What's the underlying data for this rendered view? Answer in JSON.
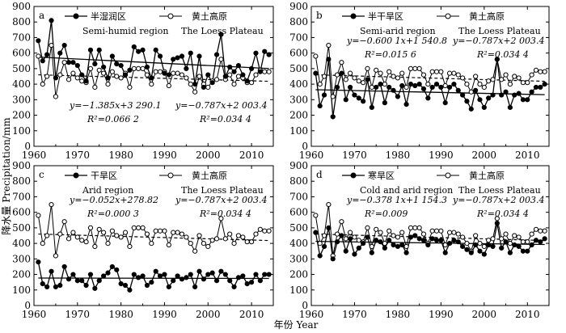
{
  "figure": {
    "y_axis_label": "降水量 Precipitation/mm",
    "x_axis_label": "年份 Year"
  },
  "legend_common": {
    "loess_cn": "黄土高原",
    "loess_en": "The Loess Plateau"
  },
  "chart_data": [
    {
      "type": "line",
      "panel": "a",
      "region_cn": "半湿润区",
      "region_en": "Semi-humid region",
      "eq_region": "y=−1.385x+3 290.1",
      "r2_region": "R²=0.066 2",
      "eq_loess": "y=−0.787x+2 003.4",
      "r2_loess": "R²=0.034 4",
      "xlim": [
        1960,
        2015
      ],
      "ylim": [
        0,
        900
      ],
      "xticks": [
        1960,
        1970,
        1980,
        1990,
        2000,
        2010
      ],
      "yticks": [
        0,
        100,
        200,
        300,
        400,
        500,
        600,
        700,
        800,
        900
      ],
      "trend_region": {
        "slope": -1.385,
        "intercept": 3290.1
      },
      "trend_loess": {
        "slope": -0.787,
        "intercept": 2003.4
      },
      "series": [
        {
          "name": "半湿润区",
          "marker": "filled",
          "x": [
            1961,
            1962,
            1963,
            1964,
            1965,
            1966,
            1967,
            1968,
            1969,
            1970,
            1971,
            1972,
            1973,
            1974,
            1975,
            1976,
            1977,
            1978,
            1979,
            1980,
            1981,
            1982,
            1983,
            1984,
            1985,
            1986,
            1987,
            1988,
            1989,
            1990,
            1991,
            1992,
            1993,
            1994,
            1995,
            1996,
            1997,
            1998,
            1999,
            2000,
            2001,
            2002,
            2003,
            2004,
            2005,
            2006,
            2007,
            2008,
            2009,
            2010,
            2011,
            2012,
            2013,
            2014
          ],
          "values": [
            680,
            550,
            590,
            810,
            440,
            600,
            650,
            540,
            540,
            520,
            460,
            420,
            620,
            530,
            620,
            510,
            440,
            580,
            530,
            520,
            460,
            490,
            640,
            610,
            620,
            510,
            440,
            620,
            580,
            470,
            460,
            560,
            570,
            580,
            500,
            600,
            400,
            580,
            380,
            460,
            410,
            590,
            720,
            450,
            510,
            480,
            520,
            460,
            420,
            500,
            600,
            480,
            610,
            590
          ]
        },
        {
          "name": "黄土高原",
          "marker": "open",
          "x": [
            1961,
            1962,
            1963,
            1964,
            1965,
            1966,
            1967,
            1968,
            1969,
            1970,
            1971,
            1972,
            1973,
            1974,
            1975,
            1976,
            1977,
            1978,
            1979,
            1980,
            1981,
            1982,
            1983,
            1984,
            1985,
            1986,
            1987,
            1988,
            1989,
            1990,
            1991,
            1992,
            1993,
            1994,
            1995,
            1996,
            1997,
            1998,
            1999,
            2000,
            2001,
            2002,
            2003,
            2004,
            2005,
            2006,
            2007,
            2008,
            2009,
            2010,
            2011,
            2012,
            2013,
            2014
          ],
          "values": [
            580,
            400,
            450,
            650,
            320,
            460,
            540,
            430,
            470,
            440,
            420,
            410,
            500,
            380,
            490,
            470,
            400,
            480,
            450,
            440,
            470,
            380,
            500,
            500,
            500,
            460,
            400,
            480,
            480,
            480,
            390,
            470,
            470,
            460,
            440,
            400,
            350,
            450,
            400,
            380,
            420,
            430,
            560,
            430,
            460,
            400,
            450,
            440,
            410,
            410,
            460,
            490,
            480,
            480
          ]
        }
      ]
    },
    {
      "type": "line",
      "panel": "b",
      "region_cn": "半干旱区",
      "region_en": "Semi-arid region",
      "eq_region": "y=−0.600 1x+1 540.8",
      "r2_region": "R²=0.015 6",
      "eq_loess": "y=−0.787x+2 003.4",
      "r2_loess": "R²=0.034 4",
      "xlim": [
        1960,
        2015
      ],
      "ylim": [
        0,
        900
      ],
      "xticks": [
        1960,
        1970,
        1980,
        1990,
        2000,
        2010
      ],
      "yticks": [
        0,
        100,
        200,
        300,
        400,
        500,
        600,
        700,
        800,
        900
      ],
      "trend_region": {
        "slope": -0.6001,
        "intercept": 1540.8
      },
      "trend_loess": {
        "slope": -0.787,
        "intercept": 2003.4
      },
      "series": [
        {
          "name": "半干旱区",
          "marker": "filled",
          "x": [
            1961,
            1962,
            1963,
            1964,
            1965,
            1966,
            1967,
            1968,
            1969,
            1970,
            1971,
            1972,
            1973,
            1974,
            1975,
            1976,
            1977,
            1978,
            1979,
            1980,
            1981,
            1982,
            1983,
            1984,
            1985,
            1986,
            1987,
            1988,
            1989,
            1990,
            1991,
            1992,
            1993,
            1994,
            1995,
            1996,
            1997,
            1998,
            1999,
            2000,
            2001,
            2002,
            2003,
            2004,
            2005,
            2006,
            2007,
            2008,
            2009,
            2010,
            2011,
            2012,
            2013,
            2014
          ],
          "values": [
            470,
            260,
            330,
            560,
            190,
            380,
            470,
            300,
            380,
            330,
            310,
            290,
            430,
            250,
            380,
            400,
            280,
            380,
            360,
            320,
            390,
            270,
            400,
            390,
            400,
            370,
            310,
            380,
            400,
            380,
            280,
            380,
            400,
            360,
            330,
            290,
            240,
            360,
            300,
            250,
            310,
            330,
            560,
            330,
            350,
            250,
            330,
            340,
            300,
            300,
            350,
            380,
            380,
            400
          ]
        },
        {
          "name": "黄土高原",
          "marker": "open",
          "x": [
            1961,
            1962,
            1963,
            1964,
            1965,
            1966,
            1967,
            1968,
            1969,
            1970,
            1971,
            1972,
            1973,
            1974,
            1975,
            1976,
            1977,
            1978,
            1979,
            1980,
            1981,
            1982,
            1983,
            1984,
            1985,
            1986,
            1987,
            1988,
            1989,
            1990,
            1991,
            1992,
            1993,
            1994,
            1995,
            1996,
            1997,
            1998,
            1999,
            2000,
            2001,
            2002,
            2003,
            2004,
            2005,
            2006,
            2007,
            2008,
            2009,
            2010,
            2011,
            2012,
            2013,
            2014
          ],
          "values": [
            580,
            400,
            450,
            650,
            320,
            460,
            540,
            430,
            470,
            440,
            420,
            410,
            500,
            380,
            490,
            470,
            400,
            480,
            450,
            440,
            470,
            380,
            500,
            500,
            500,
            460,
            400,
            480,
            480,
            480,
            390,
            470,
            470,
            460,
            440,
            400,
            350,
            450,
            400,
            380,
            420,
            430,
            560,
            430,
            460,
            400,
            450,
            440,
            410,
            410,
            460,
            490,
            480,
            480
          ]
        }
      ]
    },
    {
      "type": "line",
      "panel": "c",
      "region_cn": "干旱区",
      "region_en": "Arid region",
      "eq_region": "y=−0.052x+278.82",
      "r2_region": "R²=0.000 3",
      "eq_loess": "y=−0.787x+2 003.4",
      "r2_loess": "R²=0.034 4",
      "xlim": [
        1960,
        2015
      ],
      "ylim": [
        0,
        900
      ],
      "xticks": [
        1960,
        1970,
        1980,
        1990,
        2000,
        2010
      ],
      "yticks": [
        0,
        100,
        200,
        300,
        400,
        500,
        600,
        700,
        800,
        900
      ],
      "trend_region": {
        "slope": -0.052,
        "intercept": 278.82
      },
      "trend_loess": {
        "slope": -0.787,
        "intercept": 2003.4
      },
      "series": [
        {
          "name": "干旱区",
          "marker": "filled",
          "x": [
            1961,
            1962,
            1963,
            1964,
            1965,
            1966,
            1967,
            1968,
            1969,
            1970,
            1971,
            1972,
            1973,
            1974,
            1975,
            1976,
            1977,
            1978,
            1979,
            1980,
            1981,
            1982,
            1983,
            1984,
            1985,
            1986,
            1987,
            1988,
            1989,
            1990,
            1991,
            1992,
            1993,
            1994,
            1995,
            1996,
            1997,
            1998,
            1999,
            2000,
            2001,
            2002,
            2003,
            2004,
            2005,
            2006,
            2007,
            2008,
            2009,
            2010,
            2011,
            2012,
            2013,
            2014
          ],
          "values": [
            280,
            140,
            120,
            220,
            120,
            130,
            250,
            170,
            200,
            160,
            160,
            130,
            200,
            110,
            160,
            190,
            210,
            250,
            230,
            140,
            130,
            100,
            200,
            180,
            190,
            130,
            150,
            220,
            190,
            200,
            120,
            160,
            190,
            170,
            180,
            200,
            120,
            220,
            170,
            200,
            210,
            160,
            220,
            200,
            160,
            120,
            180,
            190,
            140,
            150,
            200,
            160,
            200,
            200
          ]
        },
        {
          "name": "黄土高原",
          "marker": "open",
          "x": [
            1961,
            1962,
            1963,
            1964,
            1965,
            1966,
            1967,
            1968,
            1969,
            1970,
            1971,
            1972,
            1973,
            1974,
            1975,
            1976,
            1977,
            1978,
            1979,
            1980,
            1981,
            1982,
            1983,
            1984,
            1985,
            1986,
            1987,
            1988,
            1989,
            1990,
            1991,
            1992,
            1993,
            1994,
            1995,
            1996,
            1997,
            1998,
            1999,
            2000,
            2001,
            2002,
            2003,
            2004,
            2005,
            2006,
            2007,
            2008,
            2009,
            2010,
            2011,
            2012,
            2013,
            2014
          ],
          "values": [
            580,
            400,
            450,
            650,
            320,
            460,
            540,
            430,
            470,
            440,
            420,
            410,
            500,
            380,
            490,
            470,
            400,
            480,
            450,
            440,
            470,
            380,
            500,
            500,
            500,
            460,
            400,
            480,
            480,
            480,
            390,
            470,
            470,
            460,
            440,
            400,
            350,
            450,
            400,
            380,
            420,
            430,
            560,
            430,
            460,
            400,
            450,
            440,
            410,
            410,
            460,
            490,
            480,
            480
          ]
        }
      ]
    },
    {
      "type": "line",
      "panel": "d",
      "region_cn": "寒旱区",
      "region_en": "Cold and arid region",
      "eq_region": "y=−0.378 1x+1 154.3",
      "r2_region": "R²=0.009",
      "eq_loess": "y=−0.787x+2 003.4",
      "r2_loess": "R²=0.034 4",
      "xlim": [
        1960,
        2015
      ],
      "ylim": [
        0,
        900
      ],
      "xticks": [
        1960,
        1970,
        1980,
        1990,
        2000,
        2010
      ],
      "yticks": [
        0,
        100,
        200,
        300,
        400,
        500,
        600,
        700,
        800,
        900
      ],
      "trend_region": {
        "slope": -0.3781,
        "intercept": 1154.3
      },
      "trend_loess": {
        "slope": -0.787,
        "intercept": 2003.4
      },
      "series": [
        {
          "name": "寒旱区",
          "marker": "filled",
          "x": [
            1961,
            1962,
            1963,
            1964,
            1965,
            1966,
            1967,
            1968,
            1969,
            1970,
            1971,
            1972,
            1973,
            1974,
            1975,
            1976,
            1977,
            1978,
            1979,
            1980,
            1981,
            1982,
            1983,
            1984,
            1985,
            1986,
            1987,
            1988,
            1989,
            1990,
            1991,
            1992,
            1993,
            1994,
            1995,
            1996,
            1997,
            1998,
            1999,
            2000,
            2001,
            2002,
            2003,
            2004,
            2005,
            2006,
            2007,
            2008,
            2009,
            2010,
            2011,
            2012,
            2013,
            2014
          ],
          "values": [
            470,
            320,
            380,
            500,
            300,
            410,
            450,
            350,
            430,
            330,
            370,
            400,
            440,
            340,
            420,
            410,
            370,
            420,
            390,
            380,
            390,
            340,
            440,
            450,
            430,
            420,
            390,
            430,
            420,
            420,
            340,
            400,
            420,
            410,
            380,
            360,
            340,
            390,
            350,
            330,
            390,
            380,
            530,
            370,
            410,
            340,
            390,
            380,
            350,
            350,
            390,
            420,
            410,
            430
          ]
        },
        {
          "name": "黄土高原",
          "marker": "open",
          "x": [
            1961,
            1962,
            1963,
            1964,
            1965,
            1966,
            1967,
            1968,
            1969,
            1970,
            1971,
            1972,
            1973,
            1974,
            1975,
            1976,
            1977,
            1978,
            1979,
            1980,
            1981,
            1982,
            1983,
            1984,
            1985,
            1986,
            1987,
            1988,
            1989,
            1990,
            1991,
            1992,
            1993,
            1994,
            1995,
            1996,
            1997,
            1998,
            1999,
            2000,
            2001,
            2002,
            2003,
            2004,
            2005,
            2006,
            2007,
            2008,
            2009,
            2010,
            2011,
            2012,
            2013,
            2014
          ],
          "values": [
            580,
            400,
            450,
            650,
            320,
            460,
            540,
            430,
            470,
            440,
            420,
            410,
            500,
            380,
            490,
            470,
            400,
            480,
            450,
            440,
            470,
            380,
            500,
            500,
            500,
            460,
            400,
            480,
            480,
            480,
            390,
            470,
            470,
            460,
            440,
            400,
            350,
            450,
            400,
            380,
            420,
            430,
            560,
            430,
            460,
            400,
            450,
            440,
            410,
            410,
            460,
            490,
            480,
            480
          ]
        }
      ]
    }
  ]
}
